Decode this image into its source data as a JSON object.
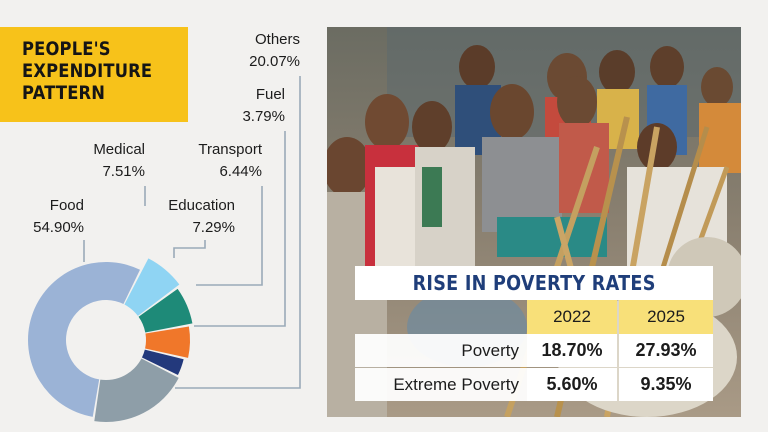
{
  "title": [
    "PEOPLE'S",
    "EXPENDITURE",
    "PATTERN"
  ],
  "colors": {
    "title_bg": "#f7c21a",
    "table_title": "#1f3e7a",
    "year_bg": "#f8e079",
    "leader": "#9aaab8"
  },
  "chart_data": [
    {
      "type": "pie",
      "variant": "donut",
      "title": "PEOPLE'S EXPENDITURE PATTERN",
      "slices": [
        {
          "name": "Food",
          "value": 54.9,
          "label": "54.90%",
          "color": "#9bb3d6"
        },
        {
          "name": "Medical",
          "value": 7.51,
          "label": "7.51%",
          "color": "#8fd4f3"
        },
        {
          "name": "Education",
          "value": 7.29,
          "label": "7.29%",
          "color": "#1e8a78"
        },
        {
          "name": "Transport",
          "value": 6.44,
          "label": "6.44%",
          "color": "#f0772a"
        },
        {
          "name": "Fuel",
          "value": 3.79,
          "label": "3.79%",
          "color": "#23397c"
        },
        {
          "name": "Others",
          "value": 20.07,
          "label": "20.07%",
          "color": "#8e9ea8"
        }
      ]
    },
    {
      "type": "table",
      "title": "RISE IN POVERTY RATES",
      "columns": [
        "",
        "2022",
        "2025"
      ],
      "rows": [
        {
          "label": "Poverty",
          "values": [
            "18.70%",
            "27.93%"
          ]
        },
        {
          "label": "Extreme Poverty",
          "values": [
            "5.60%",
            "9.35%"
          ]
        }
      ]
    }
  ],
  "photo": {
    "icon": "crowd-photo"
  }
}
